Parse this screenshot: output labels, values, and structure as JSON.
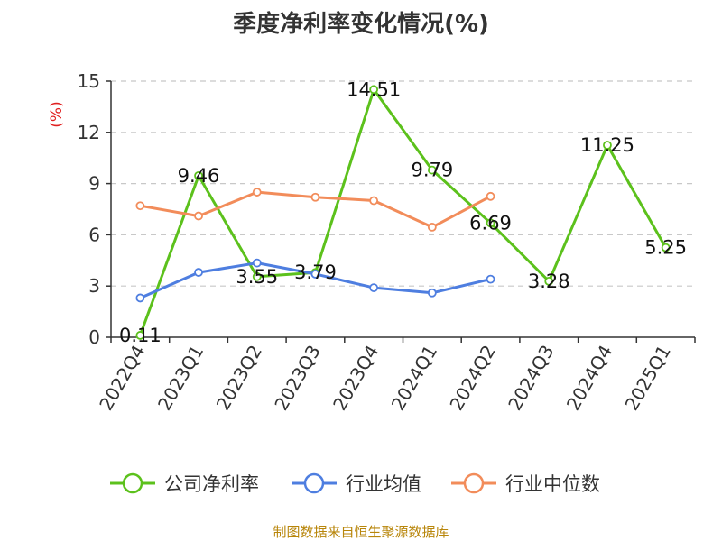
{
  "chart_data": {
    "type": "line",
    "title": "季度净利率变化情况(%)",
    "ylabel": "(%)",
    "categories": [
      "2022Q4",
      "2023Q1",
      "2023Q2",
      "2023Q3",
      "2023Q4",
      "2024Q1",
      "2024Q2",
      "2024Q3",
      "2024Q4",
      "2025Q1"
    ],
    "ylim": [
      0,
      15
    ],
    "yticks": [
      0,
      3,
      6,
      9,
      12,
      15
    ],
    "grid": true,
    "legend_position": "bottom",
    "series": [
      {
        "name": "公司净利率",
        "color": "#5cc11c",
        "values": [
          0.11,
          9.46,
          3.55,
          3.79,
          14.51,
          9.79,
          6.69,
          3.28,
          11.25,
          5.25
        ],
        "labels": [
          "0.11",
          "9.46",
          "3.55",
          "3.79",
          "14.51",
          "9.79",
          "6.69",
          "3.28",
          "11.25",
          "5.25"
        ]
      },
      {
        "name": "行业均值",
        "color": "#4e7ee0",
        "values": [
          2.3,
          3.8,
          4.35,
          3.7,
          2.9,
          2.6,
          3.4,
          null,
          null,
          null
        ]
      },
      {
        "name": "行业中位数",
        "color": "#f28c5a",
        "values": [
          7.7,
          7.1,
          8.5,
          8.2,
          8.0,
          6.45,
          8.25,
          null,
          null,
          null
        ]
      }
    ]
  },
  "source_note": "制图数据来自恒生聚源数据库"
}
